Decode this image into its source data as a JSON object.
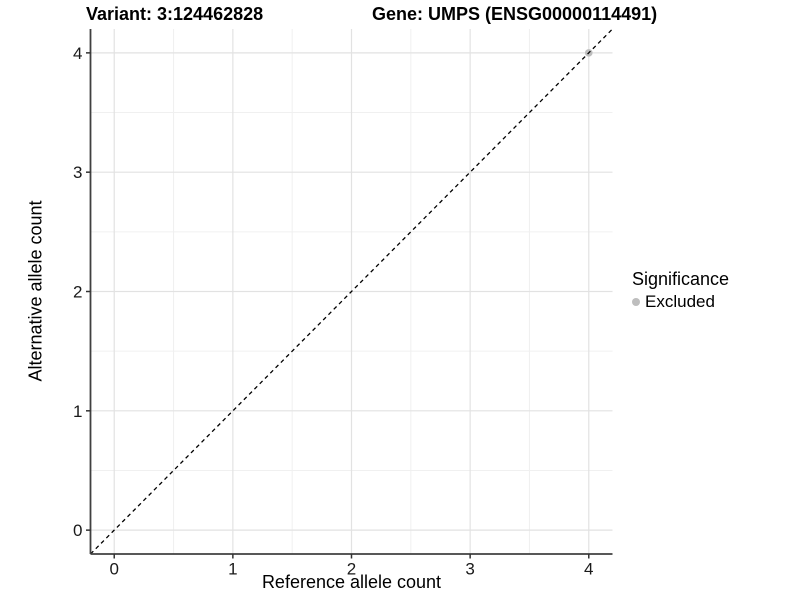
{
  "chart_data": {
    "type": "scatter",
    "titles": [
      "Variant: 3:124462828",
      "Gene: UMPS (ENSG00000114491)"
    ],
    "xlabel": "Reference allele count",
    "ylabel": "Alternative allele count",
    "xlim": [
      -0.2,
      4.2
    ],
    "ylim": [
      -0.2,
      4.2
    ],
    "xticks": [
      0,
      1,
      2,
      3,
      4
    ],
    "yticks": [
      0,
      1,
      2,
      3,
      4
    ],
    "x_minor_ticks": [
      0.5,
      1.5,
      2.5,
      3.5
    ],
    "y_minor_ticks": [
      0.5,
      1.5,
      2.5,
      3.5
    ],
    "grid": "major+minor",
    "reference_line": {
      "type": "abline",
      "slope": 1,
      "intercept": 0,
      "linetype": "dashed",
      "color": "#000000"
    },
    "series": [
      {
        "name": "Excluded",
        "color": "#bebebe",
        "points": [
          [
            4,
            4
          ]
        ]
      }
    ],
    "legend": {
      "title": "Significance",
      "position": "right",
      "items": [
        {
          "label": "Excluded",
          "color": "#bebebe",
          "marker": "circle"
        }
      ]
    }
  },
  "style": {
    "background": "#ffffff",
    "grid_major_color": "#e2e2e2",
    "grid_minor_color": "#f0f0f0",
    "axis_line_color": "#404040",
    "tick_color": "#333333",
    "text_color": "#000000"
  }
}
